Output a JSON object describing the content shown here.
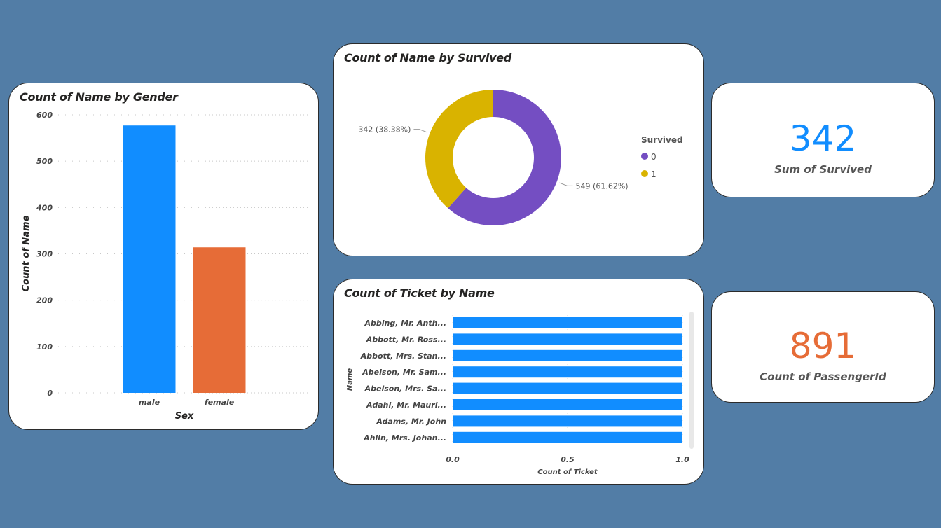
{
  "gender_card": {
    "title": "Count of Name by Gender"
  },
  "survived_card": {
    "title": "Count of Name by Survived"
  },
  "ticket_card": {
    "title": "Count of Ticket by Name"
  },
  "kpi_survived": {
    "value": "342",
    "label": "Sum of Survived",
    "color": "#118dff"
  },
  "kpi_passenger": {
    "value": "891",
    "label": "Count of PassengerId",
    "color": "#e66c37"
  },
  "chart_data": [
    {
      "type": "bar",
      "title": "Count of Name by Gender",
      "xlabel": "Sex",
      "ylabel": "Count of Name",
      "categories": [
        "male",
        "female"
      ],
      "values": [
        577,
        314
      ],
      "colors": [
        "#118dff",
        "#e66c37"
      ],
      "ylim": [
        0,
        600
      ],
      "yticks": [
        "0",
        "100",
        "200",
        "300",
        "400",
        "500",
        "600"
      ],
      "grid": true
    },
    {
      "type": "pie",
      "title": "Count of Name by Survived",
      "legend_title": "Survived",
      "labels": [
        "0",
        "1"
      ],
      "values": [
        549,
        342
      ],
      "data_labels": [
        "549 (61.62%)",
        "342 (38.38%)"
      ],
      "colors": [
        "#744ec2",
        "#d9b300"
      ],
      "legend_position": "right"
    },
    {
      "type": "bar",
      "orientation": "horizontal",
      "title": "Count of Ticket by Name",
      "xlabel": "Count of Ticket",
      "ylabel": "Name",
      "categories": [
        "Abbing, Mr. Anth...",
        "Abbott, Mr. Ross...",
        "Abbott, Mrs. Stan...",
        "Abelson, Mr. Sam...",
        "Abelson, Mrs. Sa...",
        "Adahl, Mr. Mauri...",
        "Adams, Mr. John",
        "Ahlin, Mrs. Johan..."
      ],
      "values": [
        1,
        1,
        1,
        1,
        1,
        1,
        1,
        1
      ],
      "color": "#118dff",
      "xlim": [
        0,
        1
      ],
      "xticks": [
        "0.0",
        "0.5",
        "1.0"
      ]
    }
  ]
}
